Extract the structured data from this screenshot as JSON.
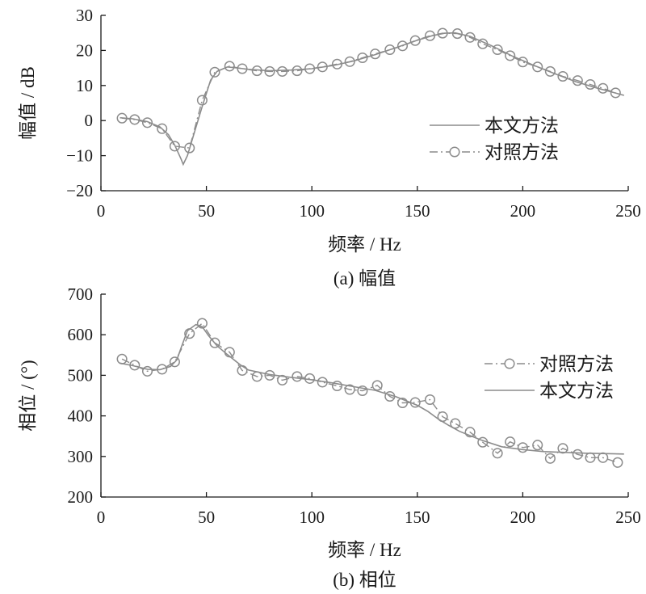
{
  "chart_data": [
    {
      "type": "line",
      "caption": "(a) 幅值",
      "xlabel": "频率 / Hz",
      "ylabel": "幅值 / dB",
      "xlim": [
        0,
        250
      ],
      "ylim": [
        -20,
        30
      ],
      "xticks": [
        "0",
        "50",
        "100",
        "150",
        "200",
        "250"
      ],
      "yticks": [
        "−20",
        "−10",
        "0",
        "10",
        "20",
        "30"
      ],
      "grid": false,
      "legend_position": "right",
      "series": [
        {
          "name": "本文方法",
          "style": "solid",
          "color": "#8c8c8c",
          "x": [
            9,
            15,
            22,
            28,
            32,
            35,
            38,
            39,
            41,
            44,
            48,
            52,
            55,
            60,
            66,
            70,
            80,
            90,
            100,
            110,
            120,
            130,
            140,
            150,
            157,
            163,
            168,
            175,
            185,
            195,
            205,
            215,
            225,
            235,
            248
          ],
          "y": [
            0.8,
            0.5,
            -0.3,
            -1.8,
            -4.0,
            -7.0,
            -11.0,
            -12.5,
            -10.0,
            -4.0,
            4.0,
            11.5,
            14.0,
            15.3,
            14.9,
            14.6,
            14.2,
            14.4,
            14.8,
            15.7,
            17.0,
            18.8,
            20.8,
            22.9,
            24.2,
            24.9,
            25.0,
            24.0,
            21.4,
            18.4,
            15.8,
            13.4,
            11.1,
            9.3,
            7.2
          ]
        },
        {
          "name": "对照方法",
          "style": "dash-dot",
          "marker": "circle",
          "color": "#8c8c8c",
          "x": [
            10,
            16,
            22,
            29,
            35,
            42,
            48,
            54,
            61,
            67,
            74,
            80,
            86,
            93,
            99,
            105,
            112,
            118,
            124,
            130,
            137,
            143,
            149,
            156,
            162,
            169,
            175,
            181,
            188,
            194,
            200,
            207,
            213,
            219,
            226,
            232,
            238,
            244
          ],
          "y": [
            0.7,
            0.3,
            -0.6,
            -2.3,
            -7.3,
            -7.8,
            5.8,
            13.8,
            15.5,
            14.8,
            14.2,
            14.0,
            14.0,
            14.2,
            14.8,
            15.3,
            16.1,
            16.8,
            17.9,
            19.0,
            20.2,
            21.3,
            22.8,
            24.2,
            24.9,
            24.8,
            23.7,
            21.9,
            20.2,
            18.5,
            16.7,
            15.3,
            14.0,
            12.6,
            11.4,
            10.3,
            9.2,
            7.9
          ]
        }
      ]
    },
    {
      "type": "line",
      "caption": "(b) 相位",
      "xlabel": "频率 / Hz",
      "ylabel": "相位 / (°)",
      "xlim": [
        0,
        250
      ],
      "ylim": [
        200,
        700
      ],
      "xticks": [
        "0",
        "50",
        "100",
        "150",
        "200",
        "250"
      ],
      "yticks": [
        "200",
        "300",
        "400",
        "500",
        "600",
        "700"
      ],
      "grid": false,
      "legend_position": "right",
      "series": [
        {
          "name": "对照方法",
          "style": "dash-dot",
          "marker": "circle",
          "color": "#8c8c8c",
          "x": [
            10,
            16,
            22,
            29,
            35,
            42,
            48,
            54,
            61,
            67,
            74,
            80,
            86,
            93,
            99,
            105,
            112,
            118,
            124,
            131,
            137,
            143,
            149,
            156,
            162,
            168,
            175,
            181,
            188,
            194,
            200,
            207,
            213,
            219,
            226,
            232,
            238,
            245
          ],
          "y": [
            540,
            525,
            510,
            515,
            533,
            603,
            628,
            580,
            557,
            512,
            497,
            500,
            488,
            497,
            492,
            483,
            474,
            465,
            462,
            475,
            448,
            432,
            433,
            440,
            398,
            381,
            360,
            335,
            308,
            336,
            322,
            328,
            295,
            320,
            305,
            297,
            297,
            285
          ]
        },
        {
          "name": "本文方法",
          "style": "solid",
          "color": "#8c8c8c",
          "x": [
            9,
            15,
            22,
            28,
            33,
            36,
            38,
            41,
            45,
            48,
            51,
            55,
            60,
            66,
            70,
            80,
            90,
            100,
            110,
            120,
            130,
            140,
            150,
            155,
            160,
            165,
            170,
            180,
            190,
            200,
            210,
            220,
            230,
            240,
            248
          ],
          "y": [
            530,
            524,
            515,
            514,
            522,
            538,
            568,
            610,
            625,
            620,
            598,
            573,
            551,
            526,
            513,
            502,
            495,
            489,
            481,
            472,
            463,
            447,
            426,
            411,
            392,
            376,
            362,
            341,
            324,
            317,
            312,
            310,
            308,
            307,
            306
          ]
        }
      ]
    }
  ]
}
